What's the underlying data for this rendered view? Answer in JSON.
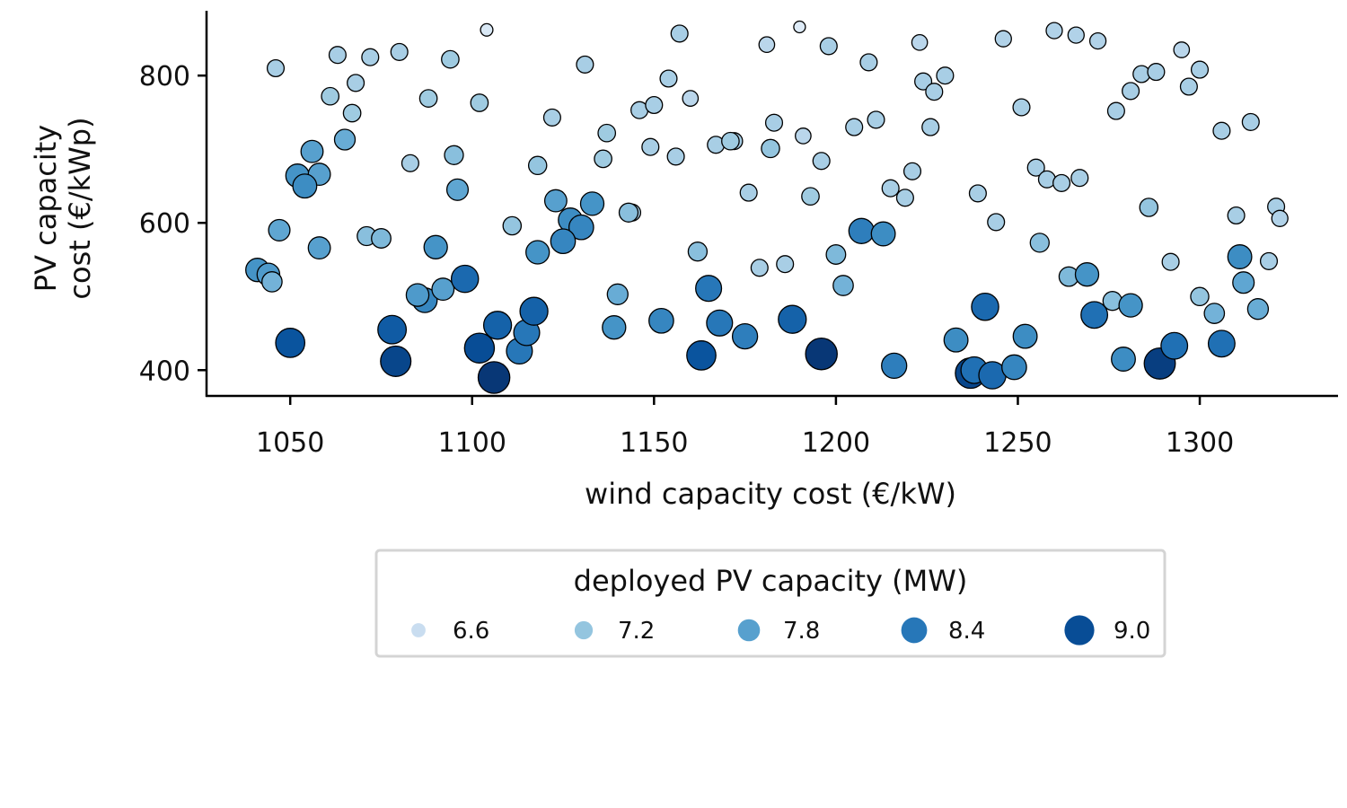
{
  "chart_data": {
    "type": "scatter",
    "title": "",
    "xlabel": "wind capacity cost (€/kW)",
    "ylabel_lines": [
      "PV capacity",
      "cost (€/kWp)"
    ],
    "xlim": [
      1027,
      1338
    ],
    "ylim": [
      365,
      888
    ],
    "xticks": [
      1050,
      1100,
      1150,
      1200,
      1250,
      1300
    ],
    "yticks": [
      400,
      600,
      800
    ],
    "grid": false,
    "legend": {
      "title": "deployed PV capacity (MW)",
      "placement": "below-center",
      "entries": [
        {
          "label": "6.6",
          "value": 6.6
        },
        {
          "label": "7.2",
          "value": 7.2
        },
        {
          "label": "7.8",
          "value": 7.8
        },
        {
          "label": "8.4",
          "value": 8.4
        },
        {
          "label": "9.0",
          "value": 9.0
        }
      ]
    },
    "size_range": [
      6.2,
      9.4
    ],
    "colormap": [
      "#deebf7",
      "#c6dbef",
      "#9ecae1",
      "#6baed6",
      "#4292c6",
      "#2171b5",
      "#08519c",
      "#08306b"
    ],
    "points": [
      [
        1046,
        810,
        7.0
      ],
      [
        1063,
        828,
        7.0
      ],
      [
        1072,
        825,
        7.0
      ],
      [
        1080,
        832,
        7.0
      ],
      [
        1104,
        862,
        6.3
      ],
      [
        1061,
        772,
        7.1
      ],
      [
        1068,
        790,
        7.0
      ],
      [
        1067,
        749,
        7.1
      ],
      [
        1065,
        713,
        7.6
      ],
      [
        1056,
        697,
        7.8
      ],
      [
        1052,
        664,
        8.0
      ],
      [
        1058,
        666,
        7.8
      ],
      [
        1054,
        650,
        8.1
      ],
      [
        1047,
        590,
        7.7
      ],
      [
        1058,
        566,
        7.8
      ],
      [
        1071,
        582,
        7.3
      ],
      [
        1075,
        579,
        7.4
      ],
      [
        1041,
        536,
        8.0
      ],
      [
        1044,
        530,
        7.9
      ],
      [
        1045,
        520,
        7.5
      ],
      [
        1083,
        681,
        7.0
      ],
      [
        1088,
        769,
        7.1
      ],
      [
        1094,
        822,
        7.1
      ],
      [
        1102,
        763,
        7.1
      ],
      [
        1095,
        692,
        7.3
      ],
      [
        1096,
        645,
        7.7
      ],
      [
        1090,
        567,
        8.0
      ],
      [
        1111,
        596,
        7.2
      ],
      [
        1122,
        743,
        7.0
      ],
      [
        1118,
        678,
        7.2
      ],
      [
        1131,
        815,
        7.0
      ],
      [
        1123,
        630,
        7.8
      ],
      [
        1133,
        626,
        8.0
      ],
      [
        1127,
        604,
        8.1
      ],
      [
        1130,
        594,
        8.2
      ],
      [
        1125,
        575,
        8.2
      ],
      [
        1118,
        560,
        8.0
      ],
      [
        1087,
        495,
        8.2
      ],
      [
        1085,
        502,
        7.9
      ],
      [
        1092,
        510,
        7.8
      ],
      [
        1098,
        524,
        8.6
      ],
      [
        1050,
        437,
        8.9
      ],
      [
        1078,
        455,
        8.8
      ],
      [
        1079,
        412,
        9.1
      ],
      [
        1102,
        430,
        9.0
      ],
      [
        1107,
        461,
        8.7
      ],
      [
        1113,
        426,
        8.4
      ],
      [
        1115,
        451,
        8.4
      ],
      [
        1117,
        480,
        8.7
      ],
      [
        1106,
        390,
        9.3
      ],
      [
        1137,
        722,
        7.1
      ],
      [
        1136,
        687,
        7.1
      ],
      [
        1144,
        614,
        7.0
      ],
      [
        1143,
        614,
        7.3
      ],
      [
        1140,
        503,
        7.6
      ],
      [
        1139,
        458,
        8.0
      ],
      [
        1146,
        753,
        7.0
      ],
      [
        1150,
        760,
        7.0
      ],
      [
        1149,
        703,
        7.0
      ],
      [
        1154,
        796,
        7.0
      ],
      [
        1157,
        857,
        7.0
      ],
      [
        1156,
        690,
        7.0
      ],
      [
        1160,
        769,
        6.8
      ],
      [
        1162,
        561,
        7.3
      ],
      [
        1165,
        511,
        8.4
      ],
      [
        1152,
        467,
        8.2
      ],
      [
        1163,
        420,
        8.9
      ],
      [
        1168,
        464,
        8.4
      ],
      [
        1175,
        446,
        8.3
      ],
      [
        1167,
        706,
        7.0
      ],
      [
        1172,
        711,
        7.0
      ],
      [
        1171,
        711,
        7.1
      ],
      [
        1176,
        641,
        7.0
      ],
      [
        1181,
        842,
        6.8
      ],
      [
        1183,
        736,
        7.0
      ],
      [
        1182,
        701,
        7.2
      ],
      [
        1179,
        539,
        7.0
      ],
      [
        1186,
        544,
        7.0
      ],
      [
        1188,
        469,
        8.7
      ],
      [
        1190,
        866,
        6.2
      ],
      [
        1191,
        718,
        6.8
      ],
      [
        1193,
        636,
        7.1
      ],
      [
        1196,
        684,
        7.0
      ],
      [
        1198,
        840,
        7.0
      ],
      [
        1200,
        557,
        7.4
      ],
      [
        1202,
        515,
        7.5
      ],
      [
        1196,
        422,
        9.3
      ],
      [
        1205,
        730,
        7.0
      ],
      [
        1209,
        818,
        7.0
      ],
      [
        1211,
        740,
        7.0
      ],
      [
        1215,
        647,
        7.0
      ],
      [
        1219,
        634,
        7.0
      ],
      [
        1221,
        670,
        7.0
      ],
      [
        1207,
        589,
        8.3
      ],
      [
        1213,
        585,
        8.1
      ],
      [
        1216,
        406,
        8.3
      ],
      [
        1223,
        845,
        6.8
      ],
      [
        1224,
        792,
        7.0
      ],
      [
        1227,
        778,
        7.0
      ],
      [
        1230,
        800,
        7.0
      ],
      [
        1226,
        730,
        7.0
      ],
      [
        1239,
        640,
        7.0
      ],
      [
        1244,
        601,
        7.0
      ],
      [
        1233,
        441,
        8.1
      ],
      [
        1241,
        486,
        8.6
      ],
      [
        1237,
        396,
        9.1
      ],
      [
        1238,
        400,
        8.5
      ],
      [
        1243,
        393,
        8.6
      ],
      [
        1246,
        850,
        6.9
      ],
      [
        1251,
        757,
        7.0
      ],
      [
        1255,
        675,
        7.0
      ],
      [
        1258,
        659,
        7.0
      ],
      [
        1262,
        654,
        7.0
      ],
      [
        1267,
        661,
        7.0
      ],
      [
        1256,
        573,
        7.3
      ],
      [
        1264,
        527,
        7.4
      ],
      [
        1269,
        530,
        8.0
      ],
      [
        1252,
        446,
        8.1
      ],
      [
        1249,
        404,
        8.2
      ],
      [
        1260,
        861,
        6.9
      ],
      [
        1266,
        855,
        6.9
      ],
      [
        1272,
        847,
        6.9
      ],
      [
        1277,
        752,
        7.0
      ],
      [
        1281,
        779,
        7.0
      ],
      [
        1284,
        802,
        7.0
      ],
      [
        1288,
        805,
        7.0
      ],
      [
        1286,
        621,
        7.2
      ],
      [
        1276,
        494,
        7.3
      ],
      [
        1281,
        488,
        8.0
      ],
      [
        1271,
        475,
        8.5
      ],
      [
        1279,
        415,
        8.1
      ],
      [
        1289,
        409,
        9.2
      ],
      [
        1293,
        433,
        8.5
      ],
      [
        1295,
        835,
        6.8
      ],
      [
        1297,
        785,
        7.0
      ],
      [
        1300,
        808,
        7.0
      ],
      [
        1306,
        725,
        7.0
      ],
      [
        1310,
        610,
        7.0
      ],
      [
        1314,
        737,
        7.0
      ],
      [
        1321,
        622,
        7.0
      ],
      [
        1322,
        606,
        6.9
      ],
      [
        1292,
        547,
        7.0
      ],
      [
        1300,
        500,
        7.2
      ],
      [
        1304,
        477,
        7.5
      ],
      [
        1311,
        554,
        8.1
      ],
      [
        1312,
        519,
        7.7
      ],
      [
        1319,
        548,
        7.0
      ],
      [
        1316,
        483,
        7.6
      ],
      [
        1306,
        436,
        8.5
      ]
    ]
  }
}
